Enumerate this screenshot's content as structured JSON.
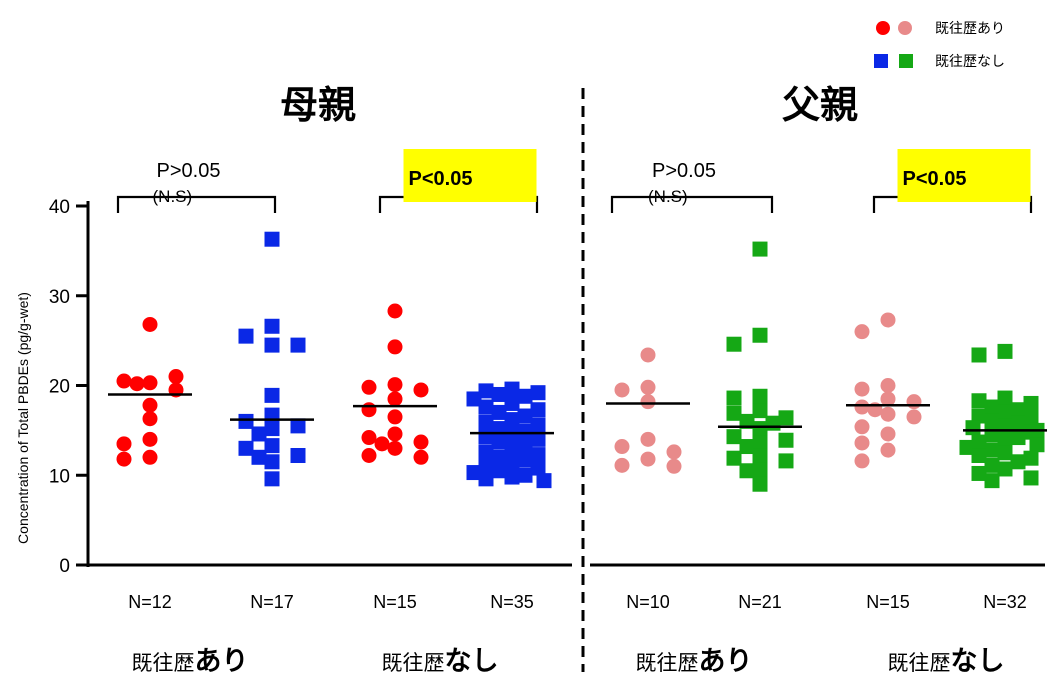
{
  "chart_data": {
    "type": "scatter",
    "ylabel": "Concentration of Total PBDEs (pg/g-wet)",
    "ylim": [
      0,
      40
    ],
    "yticks": [
      "0",
      "10",
      "20",
      "30",
      "40"
    ],
    "legend": {
      "placement": "top-right",
      "entries": [
        {
          "label": "既往歴あり",
          "colors": [
            "#ff0000",
            "#e88a8a"
          ],
          "marker": "circle"
        },
        {
          "label": "既往歴なし",
          "colors": [
            "#0a28e6",
            "#15a815"
          ],
          "marker": "square"
        }
      ]
    },
    "panels": [
      {
        "title": "母親",
        "groups": [
          {
            "label_a": "既往歴",
            "label_b": "あり",
            "comparison": {
              "p_text": "P>0.05",
              "ns_text": "(N.S)",
              "highlight": false
            },
            "series": [
              {
                "n_label": "N=12",
                "color": "#ff0000",
                "marker": "circle",
                "median": 19.0,
                "values": [
                  26.8,
                  20.3,
                  20.5,
                  21.0,
                  20.2,
                  19.5,
                  17.8,
                  16.3,
                  14.0,
                  13.5,
                  12.0,
                  11.8
                ]
              },
              {
                "n_label": "N=17",
                "color": "#0a28e6",
                "marker": "square",
                "median": 16.2,
                "values": [
                  36.3,
                  26.6,
                  25.5,
                  24.5,
                  24.5,
                  18.9,
                  16.7,
                  16.0,
                  15.2,
                  15.5,
                  14.6,
                  13.3,
                  13.0,
                  12.2,
                  12.0,
                  11.5,
                  9.6
                ]
              }
            ]
          },
          {
            "label_a": "既往歴",
            "label_b": "なし",
            "comparison": {
              "p_text": "P<0.05",
              "ns_text": "",
              "highlight": true,
              "highlight_color": "#ffff00"
            },
            "series": [
              {
                "n_label": "N=15",
                "color": "#ff0000",
                "marker": "circle",
                "median": 17.7,
                "values": [
                  28.3,
                  24.3,
                  20.1,
                  19.8,
                  19.5,
                  18.5,
                  17.3,
                  16.5,
                  14.6,
                  14.2,
                  13.7,
                  13.5,
                  13.0,
                  12.2,
                  12.0
                ]
              },
              {
                "n_label": "N=35",
                "color": "#0a28e6",
                "marker": "square",
                "median": 14.7,
                "values": [
                  19.6,
                  19.4,
                  19.2,
                  19.0,
                  18.8,
                  18.5,
                  18.0,
                  17.6,
                  17.3,
                  17.0,
                  16.6,
                  16.2,
                  15.9,
                  15.6,
                  15.2,
                  14.9,
                  14.6,
                  14.3,
                  14.0,
                  13.7,
                  13.3,
                  13.0,
                  12.6,
                  12.3,
                  12.0,
                  11.7,
                  11.4,
                  11.1,
                  10.8,
                  10.5,
                  10.3,
                  10.0,
                  9.8,
                  9.6,
                  9.4
                ]
              }
            ]
          }
        ]
      },
      {
        "title": "父親",
        "groups": [
          {
            "label_a": "既往歴",
            "label_b": "あり",
            "comparison": {
              "p_text": "P>0.05",
              "ns_text": "(N.S)",
              "highlight": false
            },
            "series": [
              {
                "n_label": "N=10",
                "color": "#e88a8a",
                "marker": "circle",
                "median": 18.0,
                "values": [
                  23.4,
                  19.8,
                  19.5,
                  18.2,
                  14.0,
                  13.2,
                  12.6,
                  11.8,
                  11.1,
                  11.0
                ]
              },
              {
                "n_label": "N=21",
                "color": "#15a815",
                "marker": "square",
                "median": 15.4,
                "values": [
                  35.2,
                  25.6,
                  24.6,
                  18.8,
                  18.6,
                  17.2,
                  16.9,
                  16.4,
                  16.0,
                  15.8,
                  15.2,
                  14.3,
                  13.9,
                  13.6,
                  13.2,
                  12.1,
                  11.9,
                  11.6,
                  10.6,
                  10.5,
                  9.0
                ]
              }
            ]
          },
          {
            "label_a": "既往歴",
            "label_b": "なし",
            "comparison": {
              "p_text": "P<0.05",
              "ns_text": "",
              "highlight": true,
              "highlight_color": "#ffff00"
            },
            "series": [
              {
                "n_label": "N=15",
                "color": "#e88a8a",
                "marker": "circle",
                "median": 17.8,
                "values": [
                  27.3,
                  26.0,
                  20.0,
                  19.6,
                  18.5,
                  18.2,
                  17.6,
                  17.3,
                  16.8,
                  16.5,
                  15.4,
                  14.6,
                  13.6,
                  12.8,
                  11.6
                ]
              },
              {
                "n_label": "N=32",
                "color": "#15a815",
                "marker": "square",
                "median": 15.0,
                "values": [
                  23.8,
                  23.4,
                  18.6,
                  18.3,
                  18.0,
                  17.6,
                  17.3,
                  17.0,
                  16.6,
                  16.4,
                  16.0,
                  15.8,
                  15.5,
                  15.3,
                  15.0,
                  14.8,
                  14.5,
                  14.2,
                  14.0,
                  13.7,
                  13.4,
                  13.1,
                  12.8,
                  12.5,
                  12.2,
                  11.9,
                  11.5,
                  11.1,
                  10.7,
                  10.2,
                  9.7,
                  9.4
                ]
              }
            ]
          }
        ]
      }
    ]
  }
}
